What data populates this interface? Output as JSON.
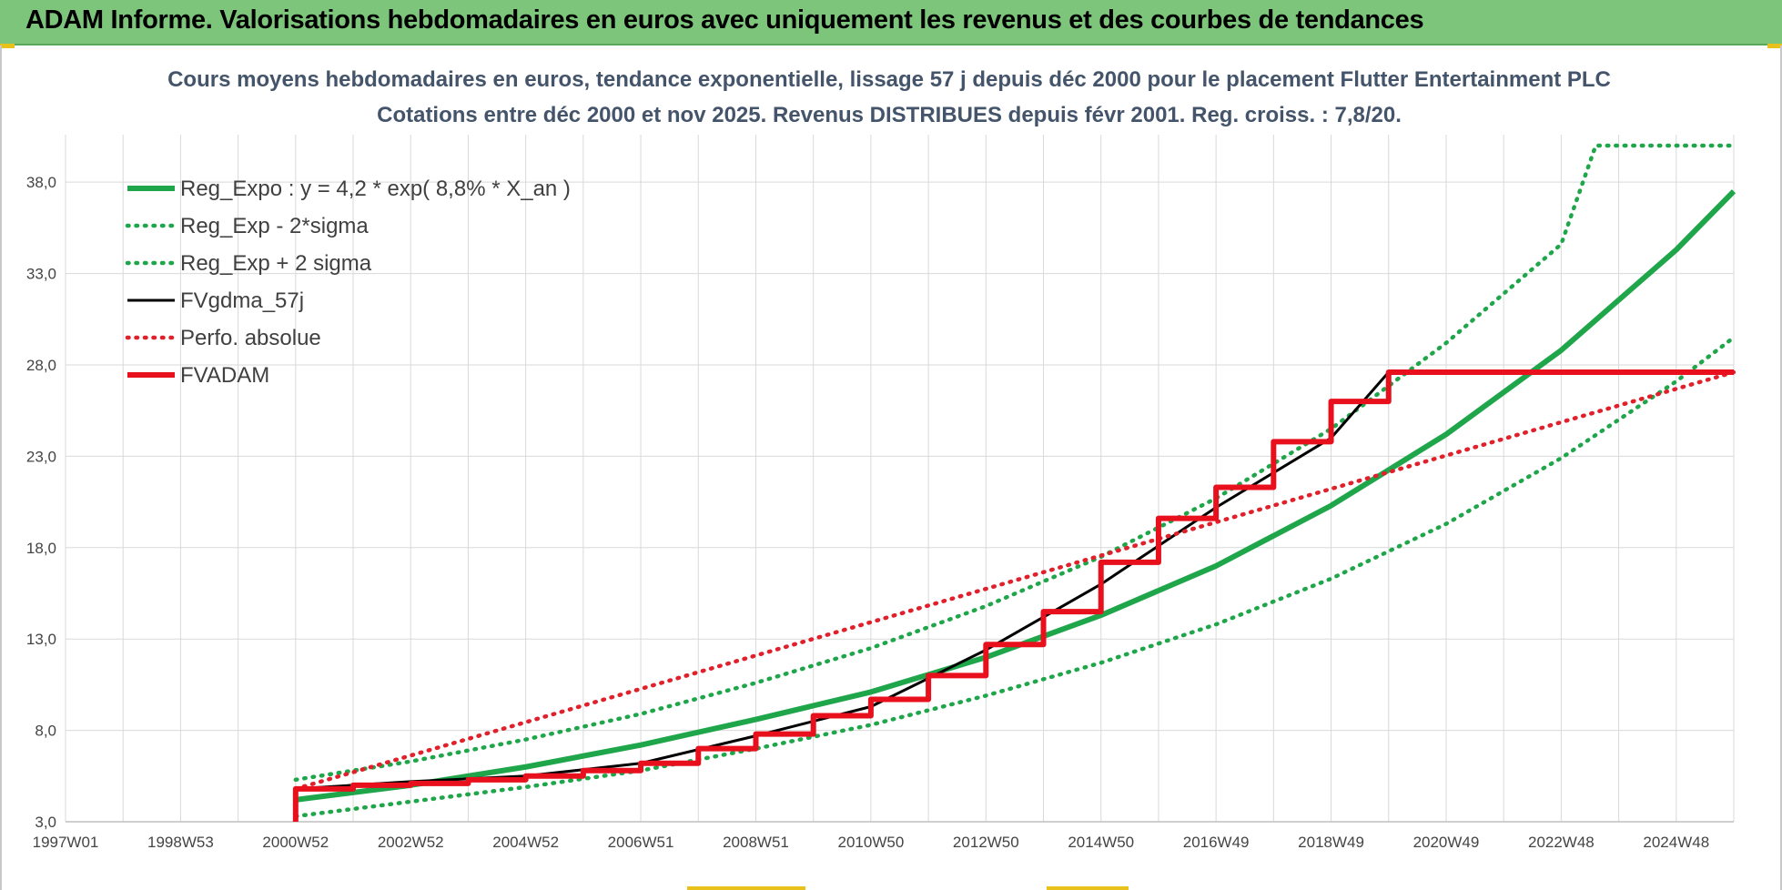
{
  "header": {
    "title": "ADAM Informe. Valorisations hebdomadaires en euros avec uniquement les revenus et des courbes de tendances"
  },
  "colors": {
    "header_bg": "#7dc57a",
    "reg_green": "#1fa64a",
    "sigma_green": "#1fa64a",
    "fvgdma_black": "#000000",
    "perfo_red": "#e0202a",
    "fvadam_red": "#e8101c",
    "title_color": "#44546a"
  },
  "chart_data": {
    "type": "line",
    "title": "Cours moyens hebdomadaires en euros, tendance exponentielle, lissage 57 j depuis déc 2000 pour le placement Flutter Entertainment PLC",
    "subtitle": "Cotations entre déc 2000 et nov 2025.  Revenus DISTRIBUES depuis févr 2001. Reg. croiss. : 7,8/20.",
    "xlabel": "",
    "ylabel": "",
    "ylim": [
      3.0,
      40.0
    ],
    "xlim": [
      1997.0,
      2026.0
    ],
    "y_ticks": [
      "3,0",
      "8,0",
      "13,0",
      "18,0",
      "23,0",
      "28,0",
      "33,0",
      "38,0"
    ],
    "y_tick_values": [
      3,
      8,
      13,
      18,
      23,
      28,
      33,
      38
    ],
    "x_ticks": [
      "1997W01",
      "1998W53",
      "2000W52",
      "2002W52",
      "2004W52",
      "2006W51",
      "2008W51",
      "2010W50",
      "2012W50",
      "2014W50",
      "2016W49",
      "2018W49",
      "2020W49",
      "2022W48",
      "2024W48"
    ],
    "x_tick_values": [
      1997.0,
      1999.0,
      2001.0,
      2003.0,
      2005.0,
      2007.0,
      2009.0,
      2011.0,
      2013.0,
      2015.0,
      2017.0,
      2019.0,
      2021.0,
      2023.0,
      2025.0
    ],
    "legend_position": "top-left",
    "grid": true,
    "series": [
      {
        "name": "Reg_Expo : y = 4,2 * exp( 8,8% *  X_an )",
        "style": "solid-thick",
        "color": "#1fa64a",
        "x": [
          2001,
          2003,
          2005,
          2007,
          2009,
          2011,
          2013,
          2015,
          2017,
          2019,
          2021,
          2023,
          2025,
          2026
        ],
        "values": [
          4.2,
          5.0,
          6.0,
          7.2,
          8.6,
          10.1,
          12.0,
          14.3,
          17.0,
          20.3,
          24.2,
          28.8,
          34.3,
          37.5
        ]
      },
      {
        "name": "Reg_Exp - 2*sigma",
        "style": "dotted",
        "color": "#1fa64a",
        "x": [
          2001,
          2003,
          2005,
          2007,
          2009,
          2011,
          2013,
          2015,
          2017,
          2019,
          2021,
          2023,
          2025,
          2026
        ],
        "values": [
          3.3,
          4.1,
          4.9,
          5.8,
          7.0,
          8.3,
          9.9,
          11.7,
          13.8,
          16.3,
          19.3,
          22.9,
          27.1,
          29.5
        ]
      },
      {
        "name": "Reg_Exp + 2 sigma",
        "style": "dotted",
        "color": "#1fa64a",
        "x": [
          2001,
          2003,
          2005,
          2007,
          2009,
          2011,
          2013,
          2015,
          2017,
          2019,
          2021,
          2023,
          2023.6,
          2026
        ],
        "values": [
          5.3,
          6.3,
          7.5,
          8.9,
          10.6,
          12.5,
          14.8,
          17.5,
          20.7,
          24.5,
          29.2,
          34.6,
          40.0,
          40.0
        ]
      },
      {
        "name": "FVgdma_57j",
        "style": "solid-thin",
        "color": "#000000",
        "x": [
          2001,
          2003,
          2005,
          2007,
          2009,
          2011,
          2013,
          2015,
          2017,
          2019,
          2020,
          2026
        ],
        "values": [
          4.8,
          5.2,
          5.5,
          6.2,
          7.7,
          9.3,
          12.4,
          16.0,
          20.2,
          24.0,
          27.6,
          27.6
        ]
      },
      {
        "name": "Perfo. absolue",
        "style": "dotted",
        "color": "#e0202a",
        "x": [
          2001,
          2026
        ],
        "values": [
          4.8,
          27.6
        ]
      },
      {
        "name": "FVADAM",
        "style": "solid-thick",
        "color": "#e8101c",
        "x": [
          2001,
          2001,
          2002,
          2003,
          2004,
          2005,
          2006,
          2007,
          2008,
          2009,
          2010,
          2011,
          2012,
          2013,
          2014,
          2015,
          2016,
          2017,
          2018,
          2019,
          2020,
          2021,
          2026
        ],
        "values": [
          3.0,
          4.8,
          5.0,
          5.1,
          5.3,
          5.5,
          5.8,
          6.2,
          7.0,
          7.8,
          8.8,
          9.7,
          11.0,
          12.7,
          14.5,
          17.2,
          19.6,
          21.3,
          23.8,
          26.0,
          27.6,
          27.6,
          27.6
        ]
      }
    ]
  }
}
